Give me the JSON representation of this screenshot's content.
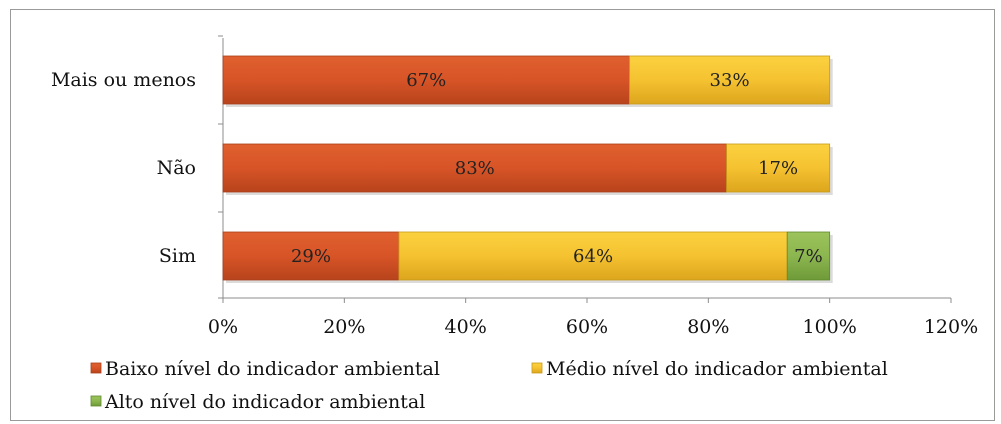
{
  "chart_data": {
    "type": "bar",
    "orientation": "horizontal",
    "stacked": true,
    "categories": [
      "Mais ou menos",
      "Não",
      "Sim"
    ],
    "series": [
      {
        "name": "Baixo nível do indicador ambiental",
        "values": [
          67,
          83,
          29
        ],
        "labels": [
          "67%",
          "83%",
          "29%"
        ],
        "color": "#d75427"
      },
      {
        "name": "Médio nível do indicador ambiental",
        "values": [
          33,
          17,
          64
        ],
        "labels": [
          "33%",
          "17%",
          "64%"
        ],
        "color": "#f5c231"
      },
      {
        "name": "Alto nível do indicador ambiental",
        "values": [
          0,
          0,
          7
        ],
        "labels": [
          "",
          "",
          "7%"
        ],
        "color": "#8cb64f"
      }
    ],
    "xlim": [
      0,
      120
    ],
    "xticks": [
      0,
      20,
      40,
      60,
      80,
      100,
      120
    ],
    "xtick_labels": [
      "0%",
      "20%",
      "40%",
      "60%",
      "80%",
      "100%",
      "120%"
    ],
    "grid": false,
    "legend_position": "bottom"
  }
}
